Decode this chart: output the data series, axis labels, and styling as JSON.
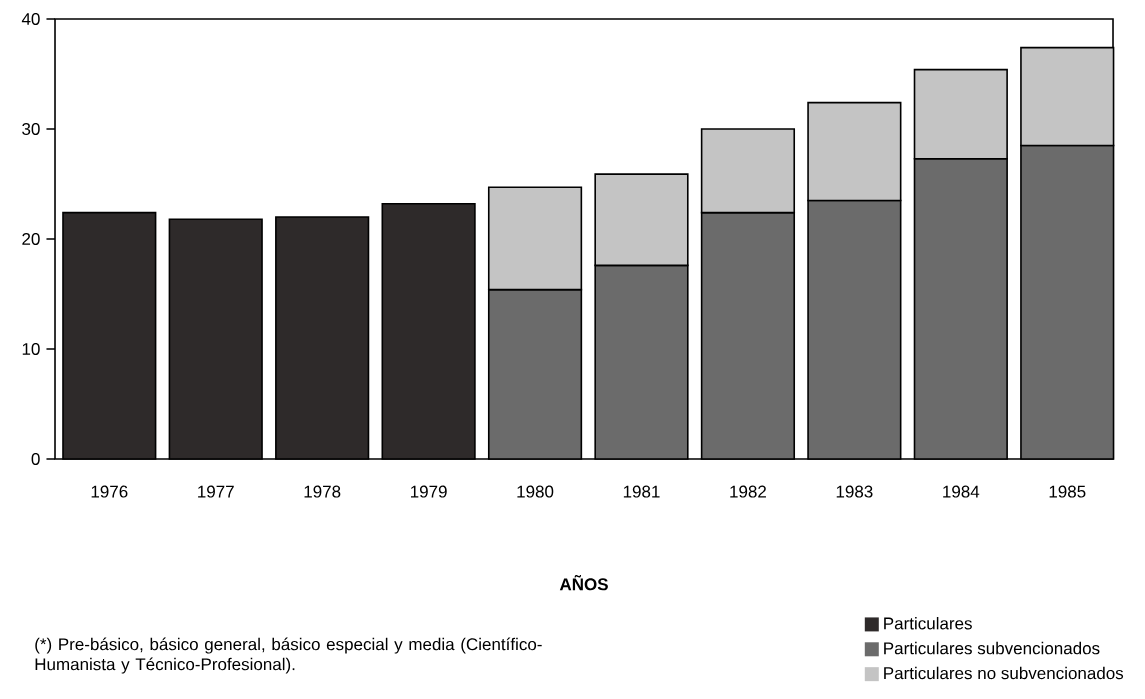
{
  "chart_data": {
    "type": "bar",
    "stacked": true,
    "xlabel": "AÑOS",
    "categories": [
      "1976",
      "1977",
      "1978",
      "1979",
      "1980",
      "1981",
      "1982",
      "1983",
      "1984",
      "1985"
    ],
    "series": [
      {
        "name": "Particulares",
        "color": "#2e2a2a",
        "values": [
          22.4,
          21.8,
          22.0,
          23.2,
          null,
          null,
          null,
          null,
          null,
          null
        ]
      },
      {
        "name": "Particulares subvencionados",
        "color": "#6b6b6b",
        "values": [
          null,
          null,
          null,
          null,
          15.4,
          17.6,
          22.4,
          23.5,
          27.3,
          28.5
        ]
      },
      {
        "name": "Particulares no subvencionados",
        "color": "#c4c4c4",
        "values": [
          null,
          null,
          null,
          null,
          9.3,
          8.3,
          7.6,
          8.9,
          8.1,
          8.9
        ]
      }
    ],
    "ylim": [
      0,
      40
    ],
    "yticks": [
      0,
      10,
      20,
      30,
      40
    ],
    "legend": "bottom right",
    "annotations": [
      "(*) Pre-básico, básico general, básico especial y media (Científico-Humanista y Técnico-Profesional)."
    ]
  }
}
